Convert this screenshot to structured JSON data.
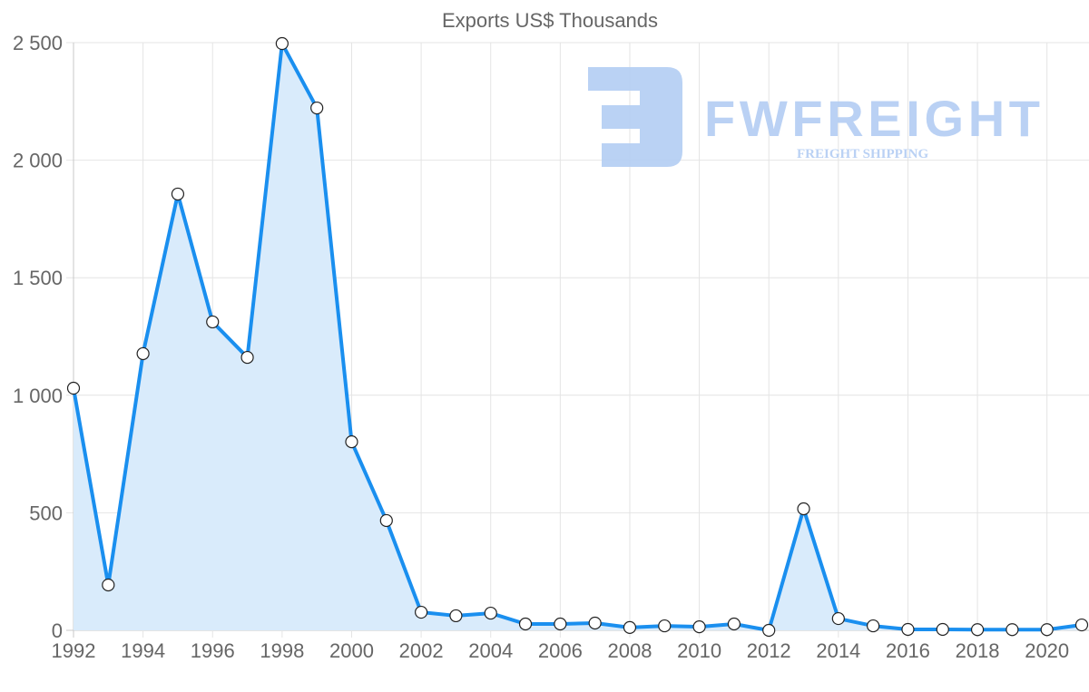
{
  "chart_data": {
    "type": "line",
    "title": "Exports US$ Thousands",
    "xlabel": "",
    "ylabel": "",
    "x": [
      1992,
      1993,
      1994,
      1995,
      1996,
      1997,
      1998,
      1999,
      2000,
      2001,
      2002,
      2003,
      2004,
      2005,
      2006,
      2007,
      2008,
      2009,
      2010,
      2011,
      2012,
      2013,
      2014,
      2015,
      2016,
      2017,
      2018,
      2019,
      2020,
      2021
    ],
    "series": [
      {
        "name": "Exports US$ Thousands",
        "values": [
          1030,
          193,
          1177,
          1856,
          1312,
          1161,
          2496,
          2222,
          802,
          467,
          77,
          62,
          73,
          27,
          27,
          31,
          12,
          19,
          15,
          27,
          0,
          517,
          50,
          19,
          4,
          4,
          3,
          3,
          3,
          23
        ]
      }
    ],
    "xlim": [
      1992,
      2021
    ],
    "ylim": [
      0,
      2500
    ],
    "x_ticks": [
      "1992",
      "1994",
      "1996",
      "1998",
      "2000",
      "2002",
      "2004",
      "2006",
      "2008",
      "2010",
      "2012",
      "2014",
      "2016",
      "2018",
      "2020"
    ],
    "y_ticks": [
      "0",
      "500",
      "1 000",
      "1 500",
      "2 000",
      "2 500"
    ],
    "grid": true,
    "fill": true,
    "line_color": "#1a8fef",
    "fill_color": "#d9ebfb",
    "legend": "none"
  },
  "watermark": {
    "brand": "FWFREIGHT",
    "tagline": "FREIGHT SHIPPING",
    "color": "#a9c6f2"
  }
}
